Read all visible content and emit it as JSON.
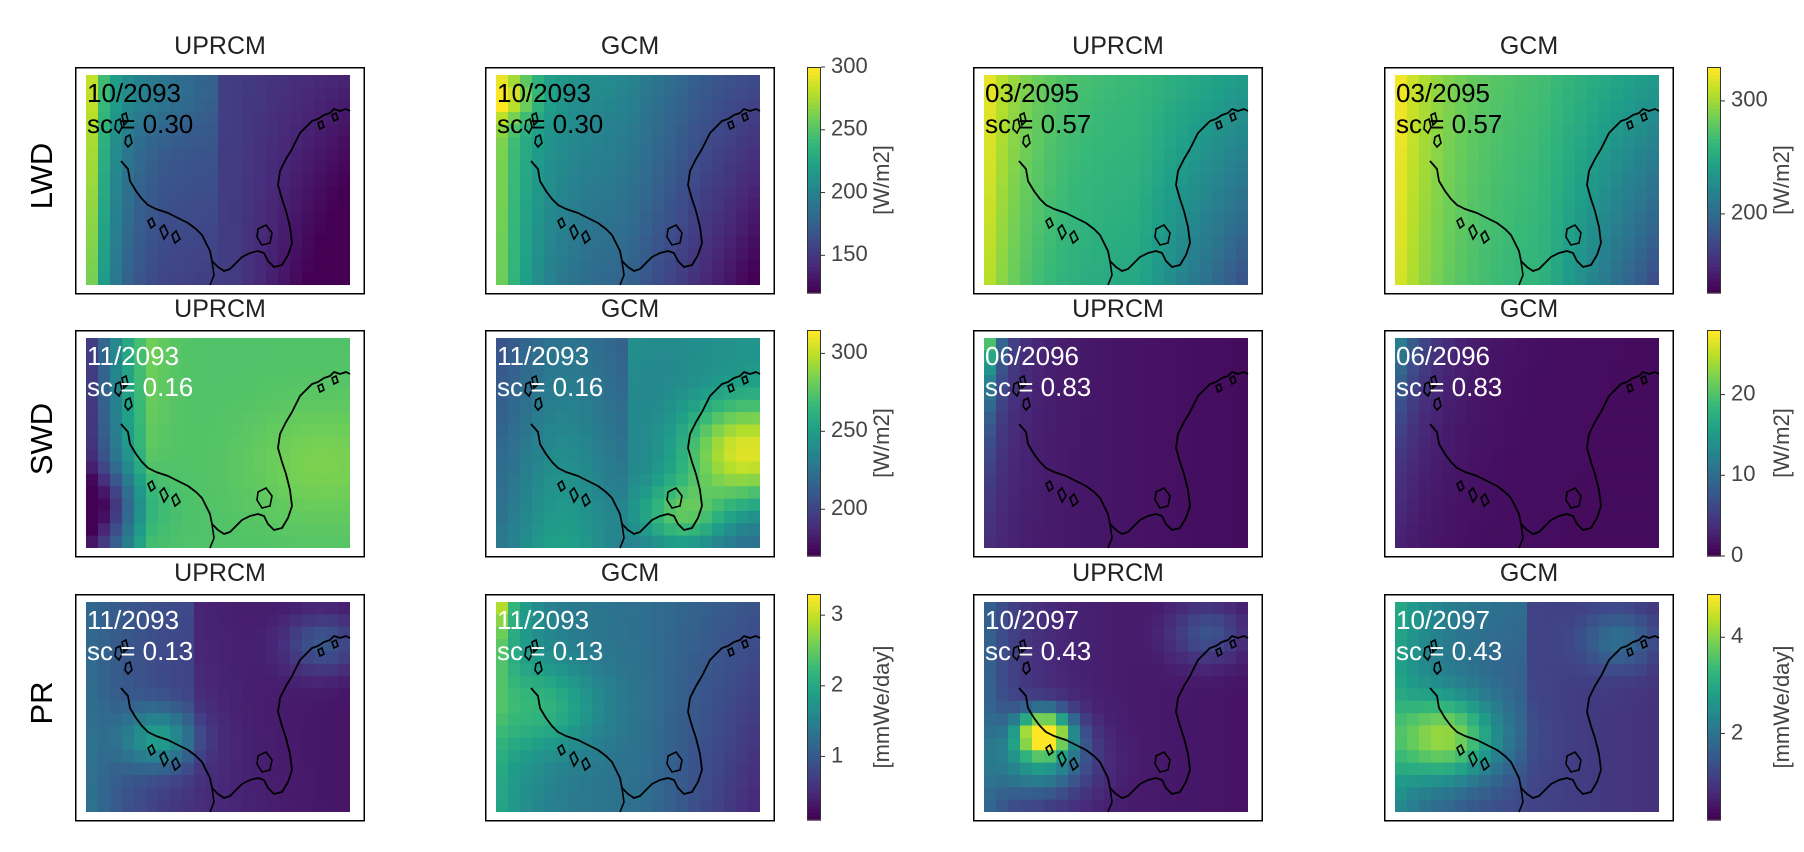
{
  "colors": {
    "viridis": [
      "#440154",
      "#482878",
      "#3e4989",
      "#31688e",
      "#26828e",
      "#1f9e89",
      "#35b779",
      "#6ece58",
      "#b5de2b",
      "#fde725"
    ],
    "coastline": "#000000",
    "frame": "#000000"
  },
  "chart_data": {
    "type": "heatmap",
    "rows": [
      {
        "label": "LWD",
        "panels": [
          {
            "title": "UPRCM",
            "date": "10/2093",
            "sc": "sc = 0.30",
            "text_color": "#000000",
            "pattern": "lwd_a"
          },
          {
            "title": "GCM",
            "date": "10/2093",
            "sc": "sc = 0.30",
            "text_color": "#000000",
            "pattern": "lwd_b"
          },
          {
            "title": "UPRCM",
            "date": "03/2095",
            "sc": "sc = 0.57",
            "text_color": "#000000",
            "pattern": "lwd_c"
          },
          {
            "title": "GCM",
            "date": "03/2095",
            "sc": "sc = 0.57",
            "text_color": "#000000",
            "pattern": "lwd_d"
          }
        ],
        "colorbars": [
          {
            "unit": "[W/m2]",
            "min": 120,
            "max": 300,
            "ticks": [
              {
                "label": "300",
                "value": 300
              },
              {
                "label": "250",
                "value": 250
              },
              {
                "label": "200",
                "value": 200
              },
              {
                "label": "150",
                "value": 150
              }
            ]
          },
          {
            "unit": "[W/m2]",
            "min": 130,
            "max": 330,
            "ticks": [
              {
                "label": "300",
                "value": 300
              },
              {
                "label": "200",
                "value": 200
              }
            ]
          }
        ]
      },
      {
        "label": "SWD",
        "panels": [
          {
            "title": "UPRCM",
            "date": "11/2093",
            "sc": "sc = 0.16",
            "text_color": "#ffffff",
            "pattern": "swd_a"
          },
          {
            "title": "GCM",
            "date": "11/2093",
            "sc": "sc = 0.16",
            "text_color": "#ffffff",
            "pattern": "swd_b"
          },
          {
            "title": "UPRCM",
            "date": "06/2096",
            "sc": "sc = 0.83",
            "text_color": "#ffffff",
            "pattern": "swd_c"
          },
          {
            "title": "GCM",
            "date": "06/2096",
            "sc": "sc = 0.83",
            "text_color": "#ffffff",
            "pattern": "swd_d"
          }
        ],
        "colorbars": [
          {
            "unit": "[W/m2]",
            "min": 170,
            "max": 315,
            "ticks": [
              {
                "label": "300",
                "value": 300
              },
              {
                "label": "250",
                "value": 250
              },
              {
                "label": "200",
                "value": 200
              }
            ]
          },
          {
            "unit": "[W/m2]",
            "min": 0,
            "max": 28,
            "ticks": [
              {
                "label": "20",
                "value": 20
              },
              {
                "label": "10",
                "value": 10
              },
              {
                "label": "0",
                "value": 0
              }
            ]
          }
        ]
      },
      {
        "label": "PR",
        "panels": [
          {
            "title": "UPRCM",
            "date": "11/2093",
            "sc": "sc = 0.13",
            "text_color": "#ffffff",
            "pattern": "pr_a"
          },
          {
            "title": "GCM",
            "date": "11/2093",
            "sc": "sc = 0.13",
            "text_color": "#ffffff",
            "pattern": "pr_b"
          },
          {
            "title": "UPRCM",
            "date": "10/2097",
            "sc": "sc = 0.43",
            "text_color": "#ffffff",
            "pattern": "pr_c"
          },
          {
            "title": "GCM",
            "date": "10/2097",
            "sc": "sc = 0.43",
            "text_color": "#ffffff",
            "pattern": "pr_d"
          }
        ],
        "colorbars": [
          {
            "unit": "[mmWe/day]",
            "min": 0.1,
            "max": 3.3,
            "ticks": [
              {
                "label": "3",
                "value": 3
              },
              {
                "label": "2",
                "value": 2
              },
              {
                "label": "1",
                "value": 1
              }
            ]
          },
          {
            "unit": "[mmWe/day]",
            "min": 0.2,
            "max": 4.9,
            "ticks": [
              {
                "label": "4",
                "value": 4
              },
              {
                "label": "2",
                "value": 2
              }
            ]
          }
        ]
      }
    ]
  }
}
